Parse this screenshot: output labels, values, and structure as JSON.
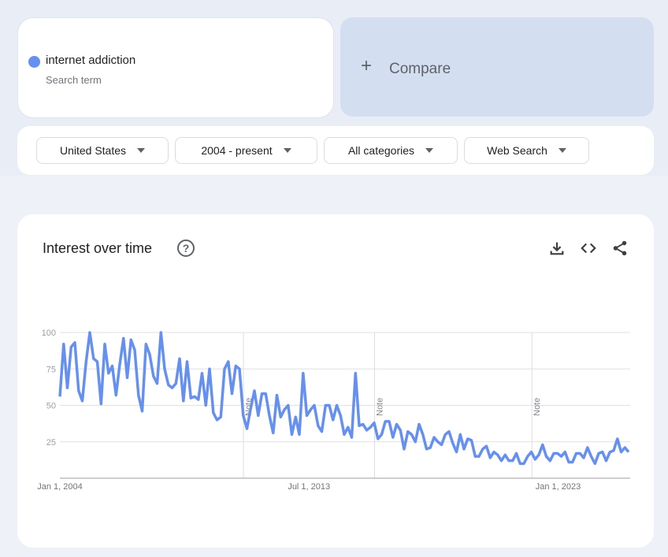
{
  "search_term": {
    "label": "internet addiction",
    "sublabel": "Search term",
    "color": "#6690f0"
  },
  "compare": {
    "icon": "plus-icon",
    "label": "Compare"
  },
  "filters": [
    {
      "label": "United States"
    },
    {
      "label": "2004 - present"
    },
    {
      "label": "All categories"
    },
    {
      "label": "Web Search"
    }
  ],
  "chart_card": {
    "title": "Interest over time",
    "icons": [
      "help-icon",
      "download-icon",
      "embed-code-icon",
      "share-icon"
    ]
  },
  "chart_data": {
    "type": "line",
    "title": "",
    "xlabel": "",
    "ylabel": "",
    "x_range": [
      "2004-01",
      "2025-10"
    ],
    "ylim": [
      0,
      100
    ],
    "yticks": [
      "25",
      "50",
      "75",
      "100"
    ],
    "xticks": [
      {
        "date": "2004-01",
        "label": "Jan 1, 2004"
      },
      {
        "date": "2013-07",
        "label": "Jul 1, 2013"
      },
      {
        "date": "2023-01",
        "label": "Jan 1, 2023"
      }
    ],
    "notes": [
      {
        "date": "2011-01",
        "label": "Note"
      },
      {
        "date": "2016-01",
        "label": "Note"
      },
      {
        "date": "2022-01",
        "label": "Note"
      }
    ],
    "grid": true,
    "series_color": "#6690f0",
    "values": [
      56,
      92,
      62,
      90,
      93,
      60,
      53,
      80,
      100,
      82,
      80,
      51,
      92,
      72,
      77,
      57,
      78,
      96,
      69,
      95,
      88,
      57,
      46,
      92,
      85,
      70,
      65,
      100,
      75,
      64,
      62,
      65,
      82,
      53,
      80,
      55,
      56,
      54,
      72,
      50,
      75,
      45,
      40,
      42,
      75,
      80,
      58,
      77,
      75,
      43,
      34,
      48,
      60,
      43,
      58,
      58,
      43,
      31,
      57,
      42,
      47,
      50,
      30,
      42,
      30,
      72,
      43,
      47,
      50,
      36,
      32,
      50,
      50,
      40,
      50,
      43,
      30,
      35,
      28,
      72,
      36,
      37,
      33,
      35,
      38,
      27,
      30,
      39,
      39,
      28,
      37,
      33,
      20,
      32,
      30,
      25,
      37,
      30,
      20,
      21,
      28,
      25,
      23,
      30,
      32,
      24,
      18,
      30,
      20,
      27,
      26,
      15,
      15,
      20,
      22,
      14,
      18,
      16,
      12,
      16,
      12,
      12,
      17,
      10,
      10,
      15,
      18,
      13,
      16,
      23,
      15,
      12,
      17,
      17,
      15,
      18,
      11,
      11,
      17,
      17,
      14,
      21,
      15,
      10,
      17,
      18,
      12,
      18,
      19,
      27,
      18,
      21,
      18
    ]
  }
}
